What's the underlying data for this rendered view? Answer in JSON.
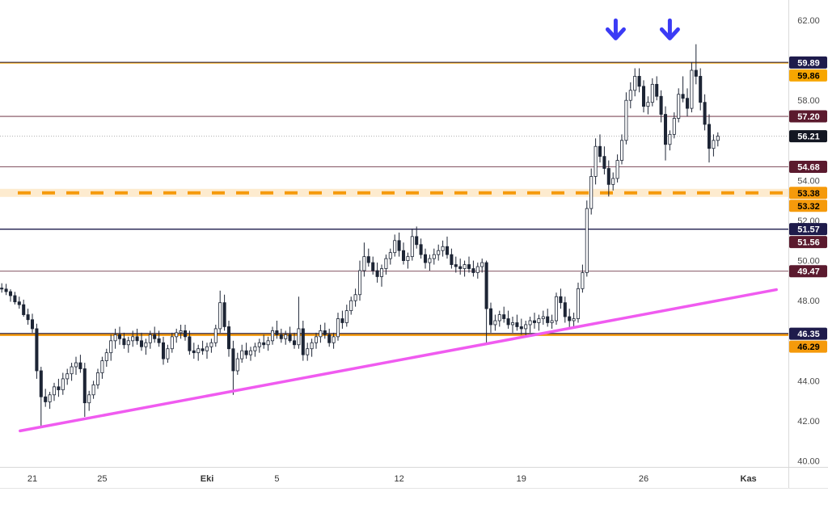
{
  "chart_data": {
    "type": "candlestick",
    "x_tick_labels": [
      {
        "label": "21",
        "day": 0
      },
      {
        "label": "25",
        "day": 4
      },
      {
        "label": "Eki",
        "day": 10
      },
      {
        "label": "5",
        "day": 14
      },
      {
        "label": "12",
        "day": 21
      },
      {
        "label": "19",
        "day": 28
      },
      {
        "label": "26",
        "day": 35
      },
      {
        "label": "Kas",
        "day": 41
      }
    ],
    "y_ticks": [
      40,
      42,
      44,
      48,
      50,
      52,
      54,
      58,
      62
    ],
    "ylim": [
      39.8,
      62.6
    ],
    "xlim": [
      -1.9,
      42.6
    ],
    "last_price": "56.21",
    "horizontal_lines": [
      {
        "value": 59.89,
        "label": "59.89",
        "color": "#1e1b4b",
        "text_color": "#ffffff",
        "width": 1.4,
        "dash": false
      },
      {
        "value": 59.86,
        "label": "59.86",
        "color": "#f7a600",
        "text_color": "#000000",
        "width": 1.0,
        "dash": false
      },
      {
        "value": 57.2,
        "label": "57.20",
        "color": "#5b1a2e",
        "text_color": "#ffffff",
        "width": 0.8,
        "dash": false
      },
      {
        "value": 54.68,
        "label": "54.68",
        "color": "#5b1a2e",
        "text_color": "#ffffff",
        "width": 0.8,
        "dash": false
      },
      {
        "value": 53.38,
        "label": "53.38",
        "color": "#f59a0b",
        "text_color": "#000000",
        "width": 4,
        "dash": true
      },
      {
        "value": 53.32,
        "label": "53.32",
        "color": "#f59a0b",
        "text_color": "#000000",
        "width": 0,
        "dash": false
      },
      {
        "value": 51.57,
        "label": "51.57",
        "color": "#1e1b4b",
        "text_color": "#ffffff",
        "width": 1.3,
        "dash": false
      },
      {
        "value": 51.56,
        "label": "51.56",
        "color": "#5b1a2e",
        "text_color": "#ffffff",
        "width": 0,
        "dash": false
      },
      {
        "value": 49.47,
        "label": "49.47",
        "color": "#5b1a2e",
        "text_color": "#ffffff",
        "width": 0.8,
        "dash": false
      },
      {
        "value": 46.35,
        "label": "46.35",
        "color": "#1e1b4b",
        "text_color": "#ffffff",
        "width": 1.8,
        "dash": false
      },
      {
        "value": 46.29,
        "label": "46.29",
        "color": "#f59a0b",
        "text_color": "#000000",
        "width": 2.5,
        "dash": false
      }
    ],
    "trendline": {
      "color": "#f05bf0",
      "points": [
        {
          "day": -0.7,
          "price": 41.5
        },
        {
          "day": 42.6,
          "price": 48.55
        }
      ]
    },
    "markers": [
      {
        "type": "down-arrow",
        "day": 33.4,
        "price": 61.5,
        "color": "#3b3bf5"
      },
      {
        "type": "down-arrow",
        "day": 36.5,
        "price": 61.5,
        "color": "#3b3bf5"
      }
    ],
    "candles": [
      [
        -2.0,
        48.79,
        49.07,
        48.45,
        48.63
      ],
      [
        -1.75,
        48.63,
        48.87,
        48.4,
        48.58
      ],
      [
        -1.5,
        48.58,
        48.84,
        48.28,
        48.45
      ],
      [
        -1.25,
        48.45,
        48.57,
        47.95,
        48.25
      ],
      [
        -1.0,
        48.25,
        48.44,
        47.81,
        47.94
      ],
      [
        -0.75,
        47.94,
        48.2,
        47.6,
        47.8
      ],
      [
        -0.5,
        47.8,
        48.05,
        47.2,
        47.3
      ],
      [
        -0.25,
        47.3,
        47.6,
        46.8,
        47.05
      ],
      [
        0.0,
        47.05,
        47.35,
        46.4,
        46.6
      ],
      [
        0.25,
        46.6,
        46.85,
        44.1,
        44.5
      ],
      [
        0.5,
        44.5,
        44.7,
        41.7,
        43.2
      ],
      [
        0.75,
        43.2,
        43.6,
        42.7,
        42.95
      ],
      [
        1.0,
        42.95,
        43.45,
        42.6,
        43.3
      ],
      [
        1.25,
        43.3,
        43.9,
        43.0,
        43.7
      ],
      [
        1.5,
        43.7,
        44.1,
        43.2,
        43.55
      ],
      [
        1.75,
        43.55,
        44.4,
        43.3,
        44.1
      ],
      [
        2.0,
        44.1,
        44.6,
        43.8,
        44.35
      ],
      [
        2.25,
        44.35,
        44.9,
        44.0,
        44.7
      ],
      [
        2.5,
        44.7,
        45.2,
        44.3,
        44.9
      ],
      [
        2.75,
        44.9,
        45.3,
        44.4,
        44.6
      ],
      [
        3.0,
        44.6,
        44.9,
        42.2,
        42.9
      ],
      [
        3.25,
        42.9,
        43.5,
        42.5,
        43.3
      ],
      [
        3.5,
        43.3,
        44.0,
        43.1,
        43.8
      ],
      [
        3.75,
        43.8,
        44.6,
        43.6,
        44.4
      ],
      [
        4.0,
        44.4,
        45.2,
        44.1,
        45.0
      ],
      [
        4.25,
        45.0,
        45.6,
        44.7,
        45.4
      ],
      [
        4.5,
        45.4,
        46.3,
        45.0,
        46.0
      ],
      [
        4.75,
        46.0,
        46.6,
        45.6,
        46.3
      ],
      [
        5.0,
        46.3,
        46.7,
        45.8,
        46.1
      ],
      [
        5.25,
        46.1,
        46.4,
        45.6,
        45.8
      ],
      [
        5.5,
        45.8,
        46.2,
        45.4,
        46.0
      ],
      [
        5.75,
        46.0,
        46.5,
        45.7,
        46.2
      ],
      [
        6.0,
        46.2,
        46.6,
        45.8,
        46.0
      ],
      [
        6.25,
        46.0,
        46.4,
        45.5,
        45.7
      ],
      [
        6.5,
        45.7,
        46.1,
        45.3,
        45.9
      ],
      [
        6.75,
        45.9,
        46.5,
        45.6,
        46.3
      ],
      [
        7.0,
        46.3,
        46.7,
        45.9,
        46.1
      ],
      [
        7.25,
        46.1,
        46.5,
        45.7,
        45.9
      ],
      [
        7.5,
        45.9,
        46.2,
        44.8,
        45.1
      ],
      [
        7.75,
        45.1,
        45.8,
        44.9,
        45.6
      ],
      [
        8.0,
        45.6,
        46.4,
        45.4,
        46.2
      ],
      [
        8.25,
        46.2,
        46.6,
        45.9,
        46.4
      ],
      [
        8.5,
        46.4,
        46.8,
        46.1,
        46.5
      ],
      [
        8.75,
        46.5,
        46.8,
        46.0,
        46.2
      ],
      [
        9.0,
        46.2,
        46.5,
        45.3,
        45.5
      ],
      [
        9.25,
        45.5,
        45.9,
        45.1,
        45.4
      ],
      [
        9.5,
        45.4,
        45.8,
        45.0,
        45.6
      ],
      [
        9.75,
        45.6,
        46.0,
        45.3,
        45.5
      ],
      [
        10.0,
        45.5,
        45.9,
        45.1,
        45.7
      ],
      [
        10.25,
        45.7,
        46.1,
        45.4,
        45.9
      ],
      [
        10.5,
        45.9,
        46.8,
        45.7,
        46.6
      ],
      [
        10.75,
        46.6,
        48.5,
        46.4,
        47.9
      ],
      [
        11.0,
        47.9,
        48.3,
        46.5,
        46.7
      ],
      [
        11.25,
        46.7,
        47.0,
        45.2,
        45.6
      ],
      [
        11.5,
        45.6,
        46.0,
        43.3,
        44.5
      ],
      [
        11.75,
        44.5,
        45.4,
        44.3,
        45.1
      ],
      [
        12.0,
        45.1,
        45.8,
        44.9,
        45.5
      ],
      [
        12.25,
        45.5,
        45.9,
        45.1,
        45.3
      ],
      [
        12.5,
        45.3,
        45.7,
        45.0,
        45.5
      ],
      [
        12.75,
        45.5,
        45.9,
        45.2,
        45.7
      ],
      [
        13.0,
        45.7,
        46.1,
        45.4,
        45.9
      ],
      [
        13.25,
        45.9,
        46.3,
        45.6,
        45.8
      ],
      [
        13.5,
        45.8,
        46.2,
        45.5,
        46.0
      ],
      [
        13.75,
        46.0,
        46.7,
        45.8,
        46.5
      ],
      [
        14.0,
        46.5,
        47.0,
        46.1,
        46.3
      ],
      [
        14.25,
        46.3,
        46.6,
        45.9,
        46.1
      ],
      [
        14.5,
        46.1,
        46.5,
        45.8,
        46.3
      ],
      [
        14.75,
        46.3,
        46.7,
        45.9,
        46.0
      ],
      [
        15.0,
        46.0,
        46.4,
        45.6,
        45.8
      ],
      [
        15.25,
        45.8,
        48.2,
        45.6,
        46.6
      ],
      [
        15.5,
        46.6,
        47.0,
        45.0,
        45.3
      ],
      [
        15.75,
        45.3,
        45.9,
        45.0,
        45.6
      ],
      [
        16.0,
        45.6,
        46.1,
        45.2,
        45.9
      ],
      [
        16.25,
        45.9,
        46.4,
        45.6,
        46.2
      ],
      [
        16.5,
        46.2,
        46.8,
        45.9,
        46.5
      ],
      [
        16.75,
        46.5,
        46.9,
        46.1,
        46.3
      ],
      [
        17.0,
        46.3,
        46.6,
        45.7,
        45.9
      ],
      [
        17.25,
        45.9,
        46.4,
        45.6,
        46.2
      ],
      [
        17.5,
        46.2,
        47.4,
        46.0,
        47.1
      ],
      [
        17.75,
        47.1,
        47.5,
        46.6,
        46.9
      ],
      [
        18.0,
        46.9,
        47.8,
        46.7,
        47.5
      ],
      [
        18.25,
        47.5,
        48.2,
        47.3,
        48.0
      ],
      [
        18.5,
        48.0,
        48.6,
        47.7,
        48.3
      ],
      [
        18.75,
        48.3,
        50.0,
        48.0,
        49.5
      ],
      [
        19.0,
        49.5,
        50.9,
        49.2,
        50.2
      ],
      [
        19.25,
        50.2,
        50.6,
        49.7,
        49.9
      ],
      [
        19.5,
        49.9,
        50.2,
        49.3,
        49.5
      ],
      [
        19.75,
        49.5,
        49.9,
        48.9,
        49.2
      ],
      [
        20.0,
        49.2,
        49.8,
        48.7,
        49.6
      ],
      [
        20.25,
        49.6,
        50.3,
        49.3,
        50.1
      ],
      [
        20.5,
        50.1,
        50.6,
        49.8,
        50.4
      ],
      [
        20.75,
        50.4,
        51.3,
        50.2,
        51.0
      ],
      [
        21.0,
        51.0,
        51.4,
        50.2,
        50.5
      ],
      [
        21.25,
        50.5,
        50.9,
        49.8,
        50.0
      ],
      [
        21.5,
        50.0,
        50.4,
        49.6,
        50.2
      ],
      [
        21.75,
        50.2,
        51.6,
        50.0,
        51.2
      ],
      [
        22.0,
        51.2,
        51.7,
        50.6,
        50.8
      ],
      [
        22.25,
        50.8,
        51.1,
        50.1,
        50.3
      ],
      [
        22.5,
        50.3,
        50.6,
        49.6,
        49.9
      ],
      [
        22.75,
        49.9,
        50.3,
        49.5,
        50.1
      ],
      [
        23.0,
        50.1,
        50.6,
        49.8,
        50.3
      ],
      [
        23.25,
        50.3,
        50.8,
        50.0,
        50.5
      ],
      [
        23.5,
        50.5,
        51.0,
        50.2,
        50.7
      ],
      [
        23.75,
        50.7,
        51.2,
        50.1,
        50.3
      ],
      [
        24.0,
        50.3,
        50.6,
        49.6,
        49.8
      ],
      [
        24.25,
        49.8,
        50.2,
        49.4,
        49.7
      ],
      [
        24.5,
        49.7,
        50.1,
        49.3,
        49.6
      ],
      [
        24.75,
        49.6,
        50.0,
        49.2,
        49.8
      ],
      [
        25.0,
        49.8,
        50.2,
        49.4,
        49.6
      ],
      [
        25.25,
        49.6,
        50.0,
        49.2,
        49.4
      ],
      [
        25.5,
        49.4,
        49.9,
        49.1,
        49.7
      ],
      [
        25.75,
        49.7,
        50.1,
        49.4,
        49.9
      ],
      [
        26.0,
        49.9,
        50.0,
        45.9,
        47.6
      ],
      [
        26.25,
        47.6,
        47.9,
        46.4,
        46.8
      ],
      [
        26.5,
        46.8,
        47.3,
        46.5,
        47.0
      ],
      [
        26.75,
        47.0,
        47.5,
        46.7,
        47.3
      ],
      [
        27.0,
        47.3,
        47.7,
        46.9,
        47.1
      ],
      [
        27.25,
        47.1,
        47.5,
        46.6,
        46.8
      ],
      [
        27.5,
        46.8,
        47.2,
        46.4,
        46.9
      ],
      [
        27.75,
        46.9,
        47.3,
        46.5,
        46.7
      ],
      [
        28.0,
        46.7,
        47.1,
        46.3,
        46.6
      ],
      [
        28.25,
        46.6,
        47.0,
        46.2,
        46.8
      ],
      [
        28.5,
        46.8,
        47.2,
        46.4,
        47.0
      ],
      [
        28.75,
        47.0,
        47.4,
        46.6,
        46.9
      ],
      [
        29.0,
        46.9,
        47.3,
        46.5,
        47.1
      ],
      [
        29.25,
        47.1,
        47.5,
        46.8,
        47.2
      ],
      [
        29.5,
        47.2,
        47.6,
        46.7,
        46.9
      ],
      [
        29.75,
        46.9,
        47.3,
        46.6,
        47.0
      ],
      [
        30.0,
        47.0,
        48.4,
        46.8,
        48.2
      ],
      [
        30.25,
        48.2,
        48.6,
        47.6,
        47.9
      ],
      [
        30.5,
        47.9,
        48.2,
        46.9,
        47.2
      ],
      [
        30.75,
        47.2,
        47.6,
        46.6,
        47.0
      ],
      [
        31.0,
        47.0,
        47.4,
        46.6,
        47.1
      ],
      [
        31.25,
        47.1,
        48.9,
        46.9,
        48.6
      ],
      [
        31.5,
        48.6,
        49.8,
        48.4,
        49.4
      ],
      [
        31.75,
        49.4,
        53.0,
        49.2,
        52.6
      ],
      [
        32.0,
        52.6,
        54.6,
        52.3,
        54.2
      ],
      [
        32.25,
        54.2,
        56.1,
        53.8,
        55.7
      ],
      [
        32.5,
        55.7,
        56.3,
        54.9,
        55.2
      ],
      [
        32.75,
        55.2,
        55.7,
        54.3,
        54.6
      ],
      [
        33.0,
        54.6,
        55.0,
        53.2,
        53.8
      ],
      [
        33.25,
        53.8,
        54.4,
        53.5,
        54.1
      ],
      [
        33.5,
        54.1,
        55.3,
        53.9,
        55.0
      ],
      [
        33.75,
        55.0,
        56.3,
        54.8,
        56.0
      ],
      [
        34.0,
        56.0,
        58.4,
        55.8,
        58.0
      ],
      [
        34.25,
        58.0,
        58.9,
        57.6,
        58.5
      ],
      [
        34.5,
        58.5,
        59.6,
        58.2,
        59.2
      ],
      [
        34.75,
        59.2,
        59.6,
        58.4,
        58.7
      ],
      [
        35.0,
        58.7,
        59.0,
        57.4,
        57.7
      ],
      [
        35.25,
        57.7,
        58.2,
        57.3,
        57.9
      ],
      [
        35.5,
        57.9,
        59.1,
        57.7,
        58.8
      ],
      [
        35.75,
        58.8,
        59.2,
        58.0,
        58.2
      ],
      [
        36.0,
        58.2,
        58.5,
        56.9,
        57.3
      ],
      [
        36.25,
        57.3,
        57.7,
        55.0,
        55.8
      ],
      [
        36.5,
        55.8,
        56.5,
        55.5,
        56.3
      ],
      [
        36.75,
        56.3,
        57.4,
        56.1,
        57.1
      ],
      [
        37.0,
        57.1,
        58.6,
        56.9,
        58.3
      ],
      [
        37.25,
        58.3,
        59.2,
        57.9,
        58.1
      ],
      [
        37.5,
        58.1,
        58.6,
        57.2,
        57.6
      ],
      [
        37.75,
        57.6,
        59.9,
        57.4,
        59.5
      ],
      [
        38.0,
        59.5,
        60.8,
        58.8,
        59.2
      ],
      [
        38.25,
        59.2,
        59.6,
        57.5,
        57.9
      ],
      [
        38.5,
        57.9,
        58.3,
        56.5,
        56.8
      ],
      [
        38.75,
        56.8,
        57.3,
        54.9,
        55.6
      ],
      [
        39.0,
        55.6,
        56.3,
        55.2,
        56.0
      ],
      [
        39.25,
        56.0,
        56.4,
        55.7,
        56.21
      ]
    ]
  }
}
